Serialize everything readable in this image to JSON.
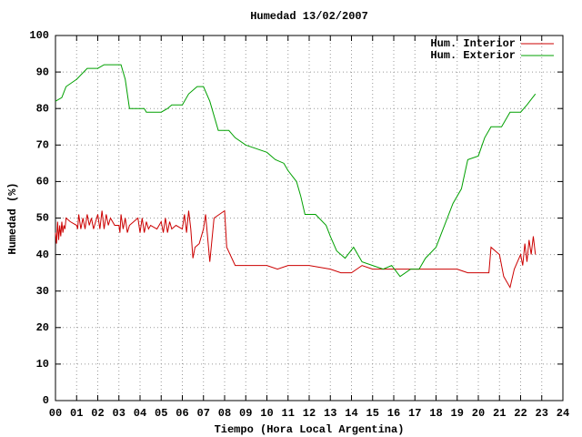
{
  "chart_data": {
    "type": "line",
    "title": "Humedad 13/02/2007",
    "xlabel": "Tiempo (Hora Local Argentina)",
    "ylabel": "Humedad (%)",
    "xlim": [
      0,
      24
    ],
    "xticks": [
      {
        "value": 0,
        "label": "00"
      },
      {
        "value": 1,
        "label": "01"
      },
      {
        "value": 2,
        "label": "02"
      },
      {
        "value": 3,
        "label": "03"
      },
      {
        "value": 4,
        "label": "04"
      },
      {
        "value": 5,
        "label": "05"
      },
      {
        "value": 6,
        "label": "06"
      },
      {
        "value": 7,
        "label": "07"
      },
      {
        "value": 8,
        "label": "08"
      },
      {
        "value": 9,
        "label": "09"
      },
      10,
      11,
      12,
      13,
      14,
      15,
      16,
      17,
      18,
      19,
      20,
      21,
      22,
      23,
      24
    ],
    "ylim": [
      0,
      100
    ],
    "yticks": [
      0,
      10,
      20,
      30,
      40,
      50,
      60,
      70,
      80,
      90,
      100
    ],
    "grid": true,
    "legend": "top-right",
    "series": [
      {
        "name": "Hum. Interior",
        "color": "#cc0000",
        "x": [
          0,
          0.05,
          0.1,
          0.15,
          0.2,
          0.25,
          0.3,
          0.35,
          0.4,
          0.45,
          0.5,
          0.7,
          1.0,
          1.05,
          1.1,
          1.2,
          1.3,
          1.4,
          1.5,
          1.6,
          1.7,
          1.8,
          2.0,
          2.1,
          2.2,
          2.3,
          2.4,
          2.5,
          2.6,
          2.8,
          3.0,
          3.05,
          3.1,
          3.2,
          3.3,
          3.4,
          3.5,
          3.7,
          3.9,
          4.0,
          4.1,
          4.2,
          4.3,
          4.4,
          4.5,
          4.8,
          5.0,
          5.1,
          5.2,
          5.3,
          5.4,
          5.5,
          5.7,
          6.0,
          6.1,
          6.2,
          6.3,
          6.4,
          6.5,
          6.6,
          6.8,
          7.0,
          7.1,
          7.3,
          7.5,
          8.0,
          8.1,
          8.5,
          9.0,
          10.0,
          10.5,
          11.0,
          12.0,
          13.0,
          13.5,
          14.0,
          14.5,
          15.0,
          16.0,
          17.0,
          18.0,
          19.0,
          19.5,
          20.0,
          20.5,
          20.6,
          21.0,
          21.2,
          21.5,
          21.7,
          22.0,
          22.1,
          22.2,
          22.3,
          22.4,
          22.5,
          22.6,
          22.7
        ],
        "values": [
          46,
          43,
          49,
          44,
          48,
          45,
          49,
          46,
          48,
          47,
          50,
          49,
          48,
          47,
          51,
          47,
          50,
          47,
          51,
          48,
          50,
          47,
          51,
          47,
          52,
          47,
          51,
          48,
          50,
          48,
          48,
          46,
          51,
          47,
          50,
          46,
          48,
          49,
          50,
          46,
          50,
          46,
          49,
          47,
          48,
          47,
          49,
          46,
          50,
          46,
          49,
          47,
          48,
          47,
          51,
          46,
          52,
          47,
          39,
          42,
          43,
          47,
          51,
          38,
          50,
          52,
          42,
          37,
          37,
          37,
          36,
          37,
          37,
          36,
          35,
          35,
          37,
          36,
          36,
          36,
          36,
          36,
          35,
          35,
          35,
          42,
          40,
          34,
          31,
          36,
          40,
          37,
          43,
          38,
          44,
          40,
          45,
          40
        ]
      },
      {
        "name": "Hum. Exterior",
        "color": "#00a000",
        "x": [
          0,
          0.3,
          0.5,
          1.0,
          1.5,
          2.0,
          2.3,
          3.1,
          3.3,
          3.5,
          4.2,
          4.3,
          5.0,
          5.3,
          5.5,
          6.0,
          6.3,
          6.7,
          7.0,
          7.3,
          7.7,
          8.2,
          8.5,
          9.0,
          9.5,
          10.0,
          10.4,
          10.8,
          11.0,
          11.4,
          11.6,
          11.8,
          12.3,
          12.8,
          13.0,
          13.3,
          13.7,
          14.1,
          14.5,
          15.0,
          15.5,
          15.9,
          16.3,
          16.8,
          17.2,
          17.5,
          18.0,
          18.4,
          18.8,
          19.2,
          19.5,
          20.0,
          20.3,
          20.6,
          21.1,
          21.5,
          22.0,
          22.3,
          22.7
        ],
        "values": [
          82,
          83,
          86,
          88,
          91,
          91,
          92,
          92,
          88,
          80,
          80,
          79,
          79,
          80,
          81,
          81,
          84,
          86,
          86,
          82,
          74,
          74,
          72,
          70,
          69,
          68,
          66,
          65,
          63,
          60,
          56,
          51,
          51,
          48,
          45,
          41,
          39,
          42,
          38,
          37,
          36,
          37,
          34,
          36,
          36,
          39,
          42,
          48,
          54,
          58,
          66,
          67,
          72,
          75,
          75,
          79,
          79,
          81,
          84
        ]
      }
    ]
  }
}
